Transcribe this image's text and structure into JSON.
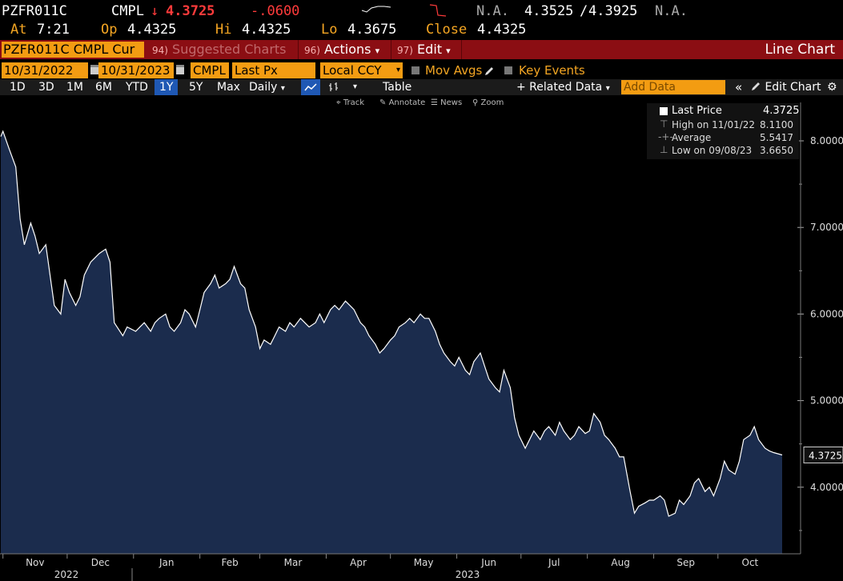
{
  "quote": {
    "ticker": "PZFR011C",
    "source": "CMPL",
    "arrow": "↓",
    "last": "4.3725",
    "change": "-.0600",
    "na1": "N.A.",
    "bid": "4.3525",
    "slash": "/",
    "ask": "4.3925",
    "na2": "N.A.",
    "at_label": "At",
    "at_time": "7:21",
    "op_label": "Op",
    "op": "4.4325",
    "hi_label": "Hi",
    "hi": "4.4325",
    "lo_label": "Lo",
    "lo": "4.3675",
    "close_label": "Close",
    "close": "4.4325"
  },
  "menubar": {
    "security": "PZFR011C CMPL Cur",
    "suggested_num": "94)",
    "suggested": "Suggested Charts",
    "actions_num": "96)",
    "actions": "Actions",
    "edit_num": "97)",
    "edit": "Edit",
    "caret": "▾",
    "title": "Line Chart"
  },
  "controls": {
    "start_date": "10/31/2022",
    "end_date": "10/31/2023",
    "source": "CMPL",
    "field": "Last Px",
    "currency": "Local CCY",
    "mov_avgs": "Mov Avgs",
    "key_events": "Key Events"
  },
  "ranges": {
    "items": [
      "1D",
      "3D",
      "1M",
      "6M",
      "YTD",
      "1Y",
      "5Y",
      "Max"
    ],
    "selected": "1Y",
    "frequency": "Daily",
    "table": "Table",
    "related": "+ Related Data",
    "add_data_placeholder": "Add Data",
    "edit_chart": "Edit Chart"
  },
  "tools": {
    "track": "Track",
    "annotate": "Annotate",
    "news": "News",
    "zoom": "Zoom"
  },
  "legend": {
    "last_label": "Last Price",
    "last_value": "4.3725",
    "high_label": "High on 11/01/22",
    "high_value": "8.1100",
    "avg_label": "Average",
    "avg_value": "5.5417",
    "low_label": "Low on 09/08/23",
    "low_value": "3.6650"
  },
  "colors": {
    "accent": "#f5a623",
    "down": "#ff3b3b",
    "menubar": "#8b0e13",
    "area_fill": "#1b2c4d",
    "line": "#ffffff"
  },
  "chart_data": {
    "type": "area",
    "ylim": [
      3.0,
      8.6
    ],
    "y_ticks": [
      "4.0000",
      "5.0000",
      "6.0000",
      "7.0000",
      "8.0000"
    ],
    "x_month_labels": [
      "Nov",
      "Dec",
      "Jan",
      "Feb",
      "Mar",
      "Apr",
      "May",
      "Jun",
      "Jul",
      "Aug",
      "Sep",
      "Oct"
    ],
    "x_year_labels": [
      "2022",
      "2023"
    ],
    "last_value_tag": "4.3725",
    "x_range": [
      "2022-10-31",
      "2023-10-31"
    ],
    "series": [
      {
        "values": [
          [
            "2022-10-31",
            8.05
          ],
          [
            "2022-11-01",
            8.11
          ],
          [
            "2022-11-04",
            7.9
          ],
          [
            "2022-11-07",
            7.7
          ],
          [
            "2022-11-09",
            7.1
          ],
          [
            "2022-11-11",
            6.8
          ],
          [
            "2022-11-14",
            7.05
          ],
          [
            "2022-11-16",
            6.9
          ],
          [
            "2022-11-18",
            6.7
          ],
          [
            "2022-11-21",
            6.8
          ],
          [
            "2022-11-23",
            6.45
          ],
          [
            "2022-11-25",
            6.1
          ],
          [
            "2022-11-28",
            6.0
          ],
          [
            "2022-11-30",
            6.4
          ],
          [
            "2022-12-02",
            6.25
          ],
          [
            "2022-12-05",
            6.1
          ],
          [
            "2022-12-07",
            6.2
          ],
          [
            "2022-12-09",
            6.45
          ],
          [
            "2022-12-12",
            6.6
          ],
          [
            "2022-12-14",
            6.65
          ],
          [
            "2022-12-16",
            6.7
          ],
          [
            "2022-12-19",
            6.75
          ],
          [
            "2022-12-21",
            6.6
          ],
          [
            "2022-12-23",
            5.9
          ],
          [
            "2022-12-27",
            5.75
          ],
          [
            "2022-12-29",
            5.85
          ],
          [
            "2023-01-02",
            5.8
          ],
          [
            "2023-01-04",
            5.85
          ],
          [
            "2023-01-06",
            5.9
          ],
          [
            "2023-01-09",
            5.8
          ],
          [
            "2023-01-11",
            5.9
          ],
          [
            "2023-01-13",
            5.95
          ],
          [
            "2023-01-16",
            6.0
          ],
          [
            "2023-01-18",
            5.85
          ],
          [
            "2023-01-20",
            5.8
          ],
          [
            "2023-01-23",
            5.9
          ],
          [
            "2023-01-25",
            6.05
          ],
          [
            "2023-01-27",
            6.0
          ],
          [
            "2023-01-30",
            5.85
          ],
          [
            "2023-02-01",
            6.05
          ],
          [
            "2023-02-03",
            6.25
          ],
          [
            "2023-02-06",
            6.35
          ],
          [
            "2023-02-08",
            6.45
          ],
          [
            "2023-02-10",
            6.3
          ],
          [
            "2023-02-13",
            6.35
          ],
          [
            "2023-02-15",
            6.4
          ],
          [
            "2023-02-17",
            6.55
          ],
          [
            "2023-02-20",
            6.35
          ],
          [
            "2023-02-22",
            6.3
          ],
          [
            "2023-02-24",
            6.05
          ],
          [
            "2023-02-27",
            5.85
          ],
          [
            "2023-03-01",
            5.6
          ],
          [
            "2023-03-03",
            5.7
          ],
          [
            "2023-03-06",
            5.65
          ],
          [
            "2023-03-08",
            5.75
          ],
          [
            "2023-03-10",
            5.85
          ],
          [
            "2023-03-13",
            5.8
          ],
          [
            "2023-03-15",
            5.9
          ],
          [
            "2023-03-17",
            5.85
          ],
          [
            "2023-03-20",
            5.95
          ],
          [
            "2023-03-22",
            5.9
          ],
          [
            "2023-03-24",
            5.85
          ],
          [
            "2023-03-27",
            5.9
          ],
          [
            "2023-03-29",
            6.0
          ],
          [
            "2023-03-31",
            5.9
          ],
          [
            "2023-04-03",
            6.05
          ],
          [
            "2023-04-05",
            6.1
          ],
          [
            "2023-04-07",
            6.05
          ],
          [
            "2023-04-10",
            6.15
          ],
          [
            "2023-04-12",
            6.1
          ],
          [
            "2023-04-14",
            6.05
          ],
          [
            "2023-04-17",
            5.9
          ],
          [
            "2023-04-19",
            5.85
          ],
          [
            "2023-04-21",
            5.75
          ],
          [
            "2023-04-24",
            5.65
          ],
          [
            "2023-04-26",
            5.55
          ],
          [
            "2023-04-28",
            5.6
          ],
          [
            "2023-05-01",
            5.7
          ],
          [
            "2023-05-03",
            5.75
          ],
          [
            "2023-05-05",
            5.85
          ],
          [
            "2023-05-08",
            5.9
          ],
          [
            "2023-05-10",
            5.95
          ],
          [
            "2023-05-12",
            5.9
          ],
          [
            "2023-05-15",
            6.0
          ],
          [
            "2023-05-17",
            5.95
          ],
          [
            "2023-05-19",
            5.95
          ],
          [
            "2023-05-22",
            5.8
          ],
          [
            "2023-05-24",
            5.65
          ],
          [
            "2023-05-26",
            5.55
          ],
          [
            "2023-05-29",
            5.45
          ],
          [
            "2023-05-31",
            5.4
          ],
          [
            "2023-06-02",
            5.5
          ],
          [
            "2023-06-05",
            5.35
          ],
          [
            "2023-06-07",
            5.3
          ],
          [
            "2023-06-09",
            5.45
          ],
          [
            "2023-06-12",
            5.55
          ],
          [
            "2023-06-14",
            5.4
          ],
          [
            "2023-06-16",
            5.25
          ],
          [
            "2023-06-19",
            5.15
          ],
          [
            "2023-06-21",
            5.1
          ],
          [
            "2023-06-23",
            5.35
          ],
          [
            "2023-06-26",
            5.15
          ],
          [
            "2023-06-28",
            4.8
          ],
          [
            "2023-06-30",
            4.6
          ],
          [
            "2023-07-03",
            4.45
          ],
          [
            "2023-07-05",
            4.55
          ],
          [
            "2023-07-07",
            4.65
          ],
          [
            "2023-07-10",
            4.55
          ],
          [
            "2023-07-12",
            4.65
          ],
          [
            "2023-07-14",
            4.7
          ],
          [
            "2023-07-17",
            4.6
          ],
          [
            "2023-07-19",
            4.75
          ],
          [
            "2023-07-21",
            4.65
          ],
          [
            "2023-07-24",
            4.55
          ],
          [
            "2023-07-26",
            4.6
          ],
          [
            "2023-07-28",
            4.7
          ],
          [
            "2023-07-31",
            4.62
          ],
          [
            "2023-08-02",
            4.65
          ],
          [
            "2023-08-04",
            4.85
          ],
          [
            "2023-08-07",
            4.75
          ],
          [
            "2023-08-09",
            4.6
          ],
          [
            "2023-08-11",
            4.55
          ],
          [
            "2023-08-14",
            4.45
          ],
          [
            "2023-08-16",
            4.35
          ],
          [
            "2023-08-18",
            4.35
          ],
          [
            "2023-08-21",
            3.95
          ],
          [
            "2023-08-23",
            3.7
          ],
          [
            "2023-08-25",
            3.78
          ],
          [
            "2023-08-28",
            3.82
          ],
          [
            "2023-08-30",
            3.85
          ],
          [
            "2023-09-01",
            3.85
          ],
          [
            "2023-09-04",
            3.9
          ],
          [
            "2023-09-06",
            3.85
          ],
          [
            "2023-09-08",
            3.665
          ],
          [
            "2023-09-11",
            3.7
          ],
          [
            "2023-09-13",
            3.85
          ],
          [
            "2023-09-15",
            3.8
          ],
          [
            "2023-09-18",
            3.9
          ],
          [
            "2023-09-20",
            4.05
          ],
          [
            "2023-09-22",
            4.1
          ],
          [
            "2023-09-25",
            3.95
          ],
          [
            "2023-09-27",
            4.0
          ],
          [
            "2023-09-29",
            3.9
          ],
          [
            "2023-10-02",
            4.1
          ],
          [
            "2023-10-04",
            4.3
          ],
          [
            "2023-10-06",
            4.2
          ],
          [
            "2023-10-09",
            4.15
          ],
          [
            "2023-10-11",
            4.3
          ],
          [
            "2023-10-13",
            4.55
          ],
          [
            "2023-10-16",
            4.6
          ],
          [
            "2023-10-18",
            4.7
          ],
          [
            "2023-10-20",
            4.55
          ],
          [
            "2023-10-23",
            4.45
          ],
          [
            "2023-10-25",
            4.42
          ],
          [
            "2023-10-27",
            4.4
          ],
          [
            "2023-10-31",
            4.3725
          ]
        ]
      }
    ]
  }
}
